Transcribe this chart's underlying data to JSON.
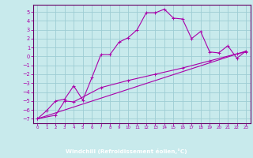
{
  "xlabel": "Windchill (Refroidissement éolien,°C)",
  "bg_color": "#c8eaec",
  "grid_color": "#9ecdd4",
  "line_color": "#aa00aa",
  "axis_color": "#660066",
  "bar_color": "#550055",
  "xlim": [
    -0.5,
    23.5
  ],
  "ylim": [
    -7.5,
    5.8
  ],
  "xticks": [
    0,
    1,
    2,
    3,
    4,
    5,
    6,
    7,
    8,
    9,
    10,
    11,
    12,
    13,
    14,
    15,
    16,
    17,
    18,
    19,
    20,
    21,
    22,
    23
  ],
  "yticks": [
    -7,
    -6,
    -5,
    -4,
    -3,
    -2,
    -1,
    0,
    1,
    2,
    3,
    4,
    5
  ],
  "line1_x": [
    0,
    1,
    2,
    3,
    4,
    5,
    6,
    7,
    8,
    9,
    10,
    11,
    12,
    13,
    14,
    15,
    16,
    17,
    18,
    19,
    20,
    21,
    22,
    23
  ],
  "line1_y": [
    -7.0,
    -6.1,
    -5.0,
    -4.8,
    -3.3,
    -4.9,
    -2.4,
    0.2,
    0.2,
    1.6,
    2.1,
    3.0,
    4.9,
    4.9,
    5.3,
    4.3,
    4.2,
    2.0,
    2.8,
    0.5,
    0.4,
    1.2,
    -0.2,
    0.6
  ],
  "line2_x": [
    0,
    2,
    3,
    4,
    7,
    10,
    13,
    16,
    19,
    22,
    23
  ],
  "line2_y": [
    -7.0,
    -6.6,
    -5.0,
    -5.1,
    -3.5,
    -2.7,
    -2.0,
    -1.3,
    -0.5,
    0.3,
    0.5
  ],
  "line3_x": [
    0,
    23
  ],
  "line3_y": [
    -7.0,
    0.6
  ]
}
